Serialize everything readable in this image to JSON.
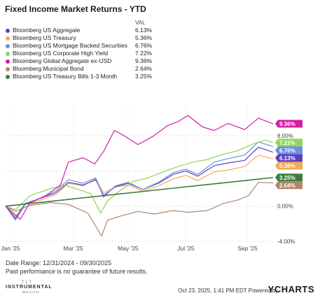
{
  "title": "Fixed Income Market Returns - YTD",
  "footer": {
    "date_range": "Date Range: 12/31/2024 - 09/30/2025",
    "disclaimer": "Past performance is no guarantee of future results.",
    "logo_name": "INSTRUMENTAL",
    "logo_sub": "WEALTH",
    "stamp": "Oct 23, 2025, 1:41 PM EDT Powered by",
    "brand": "YCHARTS"
  },
  "chart_data": {
    "type": "line",
    "xlabel": "",
    "ylabel": "",
    "x_range": [
      "2024-12-31",
      "2025-09-30"
    ],
    "ylim": [
      -4,
      11.5
    ],
    "x_ticks": [
      {
        "date": "2025-01-05",
        "label": "Jan '25"
      },
      {
        "date": "2025-03-10",
        "label": "Mar '25"
      },
      {
        "date": "2025-05-05",
        "label": "May '25"
      },
      {
        "date": "2025-07-03",
        "label": "Jul '25"
      },
      {
        "date": "2025-09-04",
        "label": "Sep '25"
      }
    ],
    "y_ticks": [
      {
        "value": 8,
        "label": "8.00%"
      },
      {
        "value": 0,
        "label": "0.00%"
      },
      {
        "value": -4,
        "label": "-4.00%"
      }
    ],
    "legend_header": "VAL",
    "series": [
      {
        "name": "Bloomberg US Aggregate",
        "label": "6.13%",
        "final": 6.13,
        "color": "#5b3fbf",
        "points": [
          [
            "2024-12-31",
            0
          ],
          [
            "2025-01-10",
            -1.4
          ],
          [
            "2025-01-20",
            0.3
          ],
          [
            "2025-02-05",
            0.9
          ],
          [
            "2025-02-20",
            1.5
          ],
          [
            "2025-03-05",
            2.7
          ],
          [
            "2025-03-20",
            2.4
          ],
          [
            "2025-04-02",
            3.0
          ],
          [
            "2025-04-10",
            1.2
          ],
          [
            "2025-04-22",
            2.2
          ],
          [
            "2025-05-05",
            2.6
          ],
          [
            "2025-05-20",
            1.9
          ],
          [
            "2025-06-05",
            2.6
          ],
          [
            "2025-06-20",
            3.6
          ],
          [
            "2025-07-03",
            4.0
          ],
          [
            "2025-07-15",
            3.4
          ],
          [
            "2025-08-01",
            4.6
          ],
          [
            "2025-08-15",
            4.9
          ],
          [
            "2025-09-01",
            5.2
          ],
          [
            "2025-09-15",
            6.7
          ],
          [
            "2025-09-30",
            6.13
          ]
        ]
      },
      {
        "name": "Bloomberg US Treasury",
        "label": "5.36%",
        "final": 5.36,
        "color": "#f5a75a",
        "points": [
          [
            "2024-12-31",
            0
          ],
          [
            "2025-01-10",
            -1.2
          ],
          [
            "2025-01-20",
            0.2
          ],
          [
            "2025-02-05",
            0.7
          ],
          [
            "2025-02-20",
            1.3
          ],
          [
            "2025-03-05",
            2.6
          ],
          [
            "2025-03-20",
            2.3
          ],
          [
            "2025-04-02",
            3.1
          ],
          [
            "2025-04-10",
            1.5
          ],
          [
            "2025-04-22",
            2.2
          ],
          [
            "2025-05-05",
            2.4
          ],
          [
            "2025-05-20",
            1.7
          ],
          [
            "2025-06-05",
            2.3
          ],
          [
            "2025-06-20",
            3.1
          ],
          [
            "2025-07-03",
            3.5
          ],
          [
            "2025-07-15",
            2.9
          ],
          [
            "2025-08-01",
            3.9
          ],
          [
            "2025-08-15",
            4.1
          ],
          [
            "2025-09-01",
            4.5
          ],
          [
            "2025-09-15",
            5.8
          ],
          [
            "2025-09-30",
            5.36
          ]
        ]
      },
      {
        "name": "Bloomberg US Mortgage Backed Securities",
        "label": "6.76%",
        "final": 6.76,
        "color": "#6c8ee0",
        "points": [
          [
            "2024-12-31",
            0
          ],
          [
            "2025-01-10",
            -1.6
          ],
          [
            "2025-01-20",
            0.2
          ],
          [
            "2025-02-05",
            0.9
          ],
          [
            "2025-02-20",
            1.7
          ],
          [
            "2025-03-05",
            3.0
          ],
          [
            "2025-03-20",
            2.6
          ],
          [
            "2025-04-02",
            3.2
          ],
          [
            "2025-04-10",
            1.0
          ],
          [
            "2025-04-22",
            2.3
          ],
          [
            "2025-05-05",
            2.7
          ],
          [
            "2025-05-20",
            1.9
          ],
          [
            "2025-06-05",
            2.7
          ],
          [
            "2025-06-20",
            3.8
          ],
          [
            "2025-07-03",
            4.2
          ],
          [
            "2025-07-15",
            3.6
          ],
          [
            "2025-08-01",
            5.0
          ],
          [
            "2025-08-15",
            5.4
          ],
          [
            "2025-09-01",
            5.8
          ],
          [
            "2025-09-15",
            7.3
          ],
          [
            "2025-09-30",
            6.76
          ]
        ]
      },
      {
        "name": "Bloomberg US Corporate High Yield",
        "label": "7.22%",
        "final": 7.22,
        "color": "#8fd65a",
        "points": [
          [
            "2024-12-31",
            0
          ],
          [
            "2025-01-10",
            -0.4
          ],
          [
            "2025-01-25",
            1.2
          ],
          [
            "2025-02-15",
            2.0
          ],
          [
            "2025-03-01",
            2.4
          ],
          [
            "2025-03-15",
            1.9
          ],
          [
            "2025-03-28",
            1.4
          ],
          [
            "2025-04-07",
            -0.8
          ],
          [
            "2025-04-14",
            0.6
          ],
          [
            "2025-04-25",
            1.6
          ],
          [
            "2025-05-10",
            2.8
          ],
          [
            "2025-05-25",
            3.2
          ],
          [
            "2025-06-10",
            3.9
          ],
          [
            "2025-06-25",
            4.5
          ],
          [
            "2025-07-10",
            5.0
          ],
          [
            "2025-07-25",
            5.3
          ],
          [
            "2025-08-10",
            5.9
          ],
          [
            "2025-08-25",
            6.3
          ],
          [
            "2025-09-10",
            7.1
          ],
          [
            "2025-09-22",
            7.5
          ],
          [
            "2025-09-30",
            7.22
          ]
        ]
      },
      {
        "name": "Bloomberg Global Aggregate ex-USD",
        "label": "9.36%",
        "final": 9.36,
        "color": "#d41ca6",
        "points": [
          [
            "2024-12-31",
            0
          ],
          [
            "2025-01-08",
            -0.8
          ],
          [
            "2025-01-15",
            -1.5
          ],
          [
            "2025-01-25",
            0.4
          ],
          [
            "2025-02-10",
            1.2
          ],
          [
            "2025-02-25",
            2.4
          ],
          [
            "2025-03-05",
            5.0
          ],
          [
            "2025-03-20",
            5.5
          ],
          [
            "2025-04-01",
            4.8
          ],
          [
            "2025-04-10",
            6.2
          ],
          [
            "2025-04-21",
            8.6
          ],
          [
            "2025-05-01",
            8.0
          ],
          [
            "2025-05-15",
            7.0
          ],
          [
            "2025-05-30",
            7.9
          ],
          [
            "2025-06-15",
            9.2
          ],
          [
            "2025-06-25",
            9.6
          ],
          [
            "2025-07-05",
            10.3
          ],
          [
            "2025-07-20",
            9.0
          ],
          [
            "2025-08-01",
            8.6
          ],
          [
            "2025-08-15",
            9.4
          ],
          [
            "2025-09-01",
            8.7
          ],
          [
            "2025-09-15",
            10.0
          ],
          [
            "2025-09-30",
            9.36
          ]
        ]
      },
      {
        "name": "Bloomberg Municipal Bond",
        "label": "2.64%",
        "final": 2.64,
        "color": "#b0866a",
        "points": [
          [
            "2024-12-31",
            0
          ],
          [
            "2025-01-10",
            -0.6
          ],
          [
            "2025-01-25",
            0.1
          ],
          [
            "2025-02-15",
            0.4
          ],
          [
            "2025-03-05",
            0.2
          ],
          [
            "2025-03-25",
            -0.8
          ],
          [
            "2025-04-08",
            -3.4
          ],
          [
            "2025-04-14",
            -1.6
          ],
          [
            "2025-04-25",
            -1.2
          ],
          [
            "2025-05-15",
            -0.6
          ],
          [
            "2025-06-01",
            -0.9
          ],
          [
            "2025-06-20",
            -0.5
          ],
          [
            "2025-07-05",
            -0.7
          ],
          [
            "2025-07-25",
            -0.5
          ],
          [
            "2025-08-10",
            0.3
          ],
          [
            "2025-08-25",
            0.7
          ],
          [
            "2025-09-05",
            1.2
          ],
          [
            "2025-09-15",
            2.7
          ],
          [
            "2025-09-30",
            2.64
          ]
        ]
      },
      {
        "name": "Bloomberg US Treasury Bills 1-3 Month",
        "label": "3.25%",
        "final": 3.25,
        "color": "#3e7d3e",
        "points": [
          [
            "2024-12-31",
            0
          ],
          [
            "2025-09-30",
            3.25
          ]
        ]
      }
    ]
  }
}
